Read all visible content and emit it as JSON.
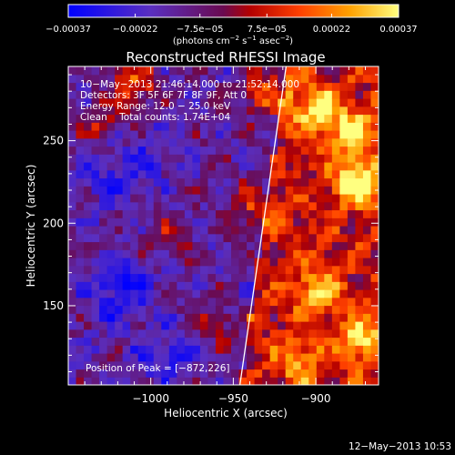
{
  "chart_data": {
    "type": "heatmap",
    "title": "Reconstructed RHESSI Image",
    "xlabel": "Heliocentric X (arcsec)",
    "ylabel": "Heliocentric Y (arcsec)",
    "xlim": [
      -1050,
      -862
    ],
    "ylim": [
      102,
      295
    ],
    "x_ticks": [
      -1000,
      -950,
      -900
    ],
    "x_tick_labels": [
      "−1000",
      "−950",
      "−900"
    ],
    "y_ticks": [
      150,
      200,
      250
    ],
    "y_tick_labels": [
      "150",
      "200",
      "250"
    ],
    "colorbar": {
      "range": [
        -0.00037,
        0.00037
      ],
      "ticks": [
        -0.00037,
        -0.00022,
        -7.5e-05,
        7.5e-05,
        0.00022,
        0.00037
      ],
      "tick_labels": [
        "−0.00037",
        "−0.00022",
        "−7.5e−05",
        "7.5e−05",
        "0.00022",
        "0.00037"
      ],
      "units_main": "(photons cm",
      "units_sup1": "−2",
      "units_mid": " s",
      "units_sup2": "−1",
      "units_end": " asec",
      "units_sup3": "−2",
      "units_close": ")",
      "colors": [
        "#0000ff",
        "#5a2fc0",
        "#6a0a50",
        "#b40000",
        "#ff4000",
        "#ffa000",
        "#ffff80"
      ]
    },
    "annotations": [
      "10−May−2013 21:46:14.000 to 21:52:14.000",
      "Detectors: 3F 5F 6F 7F 8F 9F, Att 0",
      "Energy Range: 12.0 − 25.0 keV",
      "Clean    Total counts: 1.74E+04"
    ],
    "peak_label": "Position of Peak = [−872,226]",
    "limb_line": [
      [
        -946,
        102
      ],
      [
        -918,
        295
      ]
    ],
    "background_field": {
      "description_free": true,
      "hot_spots": [
        {
          "x": -875,
          "y": 225,
          "v": 0.00037
        },
        {
          "x": -878,
          "y": 255,
          "v": 0.00032
        },
        {
          "x": -900,
          "y": 270,
          "v": 0.0003
        },
        {
          "x": -930,
          "y": 280,
          "v": 0.00028
        },
        {
          "x": -1010,
          "y": 285,
          "v": 0.00025
        },
        {
          "x": -1030,
          "y": 260,
          "v": 0.00015
        },
        {
          "x": -900,
          "y": 160,
          "v": 0.00025
        },
        {
          "x": -872,
          "y": 130,
          "v": 0.00028
        },
        {
          "x": -910,
          "y": 115,
          "v": 0.0002
        },
        {
          "x": -940,
          "y": 210,
          "v": 0.0002
        },
        {
          "x": -990,
          "y": 195,
          "v": 0.00012
        },
        {
          "x": -960,
          "y": 140,
          "v": 0.00012
        }
      ],
      "cold_spots": [
        {
          "x": -1020,
          "y": 160,
          "v": -0.0002
        },
        {
          "x": -1030,
          "y": 230,
          "v": -0.00012
        },
        {
          "x": -990,
          "y": 120,
          "v": -0.00015
        },
        {
          "x": -1000,
          "y": 240,
          "v": -0.0001
        }
      ]
    }
  },
  "footer": {
    "date": "12−May−2013 10:53"
  }
}
